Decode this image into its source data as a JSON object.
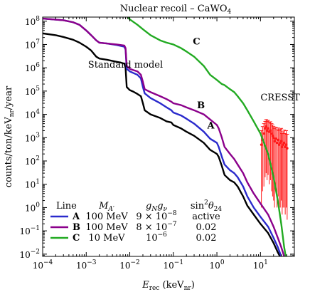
{
  "chart_data": {
    "type": "line",
    "title": "Nuclear recoil – CaWO",
    "title_sub": "4",
    "xlabel": {
      "main": "E",
      "sub": "rec",
      "rest": " (keV",
      "sub2": "nr",
      "close": ")"
    },
    "ylabel": {
      "main": "counts/ton/keV",
      "sub": "nr",
      "rest": "/year"
    },
    "x_scale": "log",
    "y_scale": "log",
    "xlim": [
      0.0001,
      60
    ],
    "ylim": [
      0.008,
      150000000
    ],
    "x_ticks": [
      {
        "v": 0.0001,
        "m": "10",
        "e": "−4"
      },
      {
        "v": 0.001,
        "m": "10",
        "e": "−3"
      },
      {
        "v": 0.01,
        "m": "10",
        "e": "−2"
      },
      {
        "v": 0.1,
        "m": "10",
        "e": "−1"
      },
      {
        "v": 1,
        "m": "10",
        "e": "0"
      },
      {
        "v": 10,
        "m": "10",
        "e": "1"
      }
    ],
    "y_ticks": [
      {
        "v": 0.01,
        "m": "10",
        "e": "−2"
      },
      {
        "v": 0.1,
        "m": "10",
        "e": "−1"
      },
      {
        "v": 1,
        "m": "10",
        "e": "0"
      },
      {
        "v": 10,
        "m": "10",
        "e": "1"
      },
      {
        "v": 100,
        "m": "10",
        "e": "2"
      },
      {
        "v": 1000,
        "m": "10",
        "e": "3"
      },
      {
        "v": 10000,
        "m": "10",
        "e": "4"
      },
      {
        "v": 100000,
        "m": "10",
        "e": "5"
      },
      {
        "v": 1000000,
        "m": "10",
        "e": "6"
      },
      {
        "v": 10000000,
        "m": "10",
        "e": "7"
      },
      {
        "v": 100000000,
        "m": "10",
        "e": "8"
      }
    ],
    "grid": false,
    "series": [
      {
        "name": "Standard model",
        "color": "#000000",
        "points": [
          [
            0.0001,
            30000000
          ],
          [
            0.0002,
            25000000
          ],
          [
            0.0003,
            21000000
          ],
          [
            0.0005,
            16000000
          ],
          [
            0.0007,
            12000000
          ],
          [
            0.001,
            8000000
          ],
          [
            0.0013,
            5500000
          ],
          [
            0.0017,
            3000000
          ],
          [
            0.002,
            2500000
          ],
          [
            0.003,
            2200000
          ],
          [
            0.005,
            1800000
          ],
          [
            0.006,
            1700000
          ],
          [
            0.0075,
            1500000
          ],
          [
            0.008,
            1000000
          ],
          [
            0.0085,
            150000
          ],
          [
            0.01,
            110000
          ],
          [
            0.012,
            95000
          ],
          [
            0.015,
            75000
          ],
          [
            0.018,
            60000
          ],
          [
            0.02,
            30000
          ],
          [
            0.022,
            15000
          ],
          [
            0.03,
            10000
          ],
          [
            0.05,
            7000
          ],
          [
            0.07,
            5000
          ],
          [
            0.09,
            4500
          ],
          [
            0.1,
            3500
          ],
          [
            0.15,
            2500
          ],
          [
            0.2,
            1800
          ],
          [
            0.3,
            1200
          ],
          [
            0.5,
            600
          ],
          [
            0.7,
            300
          ],
          [
            1,
            200
          ],
          [
            1.1,
            150
          ],
          [
            1.3,
            60
          ],
          [
            1.5,
            25
          ],
          [
            2,
            15
          ],
          [
            2.5,
            12
          ],
          [
            3,
            8
          ],
          [
            4,
            3
          ],
          [
            5,
            1.2
          ],
          [
            7,
            0.5
          ],
          [
            10,
            0.2
          ],
          [
            15,
            0.08
          ],
          [
            20,
            0.03
          ],
          [
            25,
            0.012
          ],
          [
            28,
            0.008
          ]
        ]
      },
      {
        "name": "A",
        "color": "#2a2acc",
        "points": [
          [
            0.0001,
            130000000
          ],
          [
            0.0003,
            110000000
          ],
          [
            0.0005,
            90000000
          ],
          [
            0.0007,
            70000000
          ],
          [
            0.001,
            40000000
          ],
          [
            0.0013,
            25000000
          ],
          [
            0.0017,
            15000000
          ],
          [
            0.002,
            12000000
          ],
          [
            0.003,
            11000000
          ],
          [
            0.005,
            9500000
          ],
          [
            0.0075,
            8000000
          ],
          [
            0.008,
            6000000
          ],
          [
            0.0085,
            900000
          ],
          [
            0.01,
            700000
          ],
          [
            0.012,
            600000
          ],
          [
            0.015,
            500000
          ],
          [
            0.018,
            350000
          ],
          [
            0.02,
            150000
          ],
          [
            0.022,
            80000
          ],
          [
            0.03,
            50000
          ],
          [
            0.05,
            30000
          ],
          [
            0.07,
            20000
          ],
          [
            0.09,
            15000
          ],
          [
            0.1,
            12000
          ],
          [
            0.15,
            9000
          ],
          [
            0.2,
            6500
          ],
          [
            0.3,
            4000
          ],
          [
            0.5,
            1800
          ],
          [
            0.7,
            900
          ],
          [
            1,
            600
          ],
          [
            1.1,
            400
          ],
          [
            1.3,
            150
          ],
          [
            1.5,
            70
          ],
          [
            2,
            40
          ],
          [
            2.5,
            30
          ],
          [
            3,
            20
          ],
          [
            4,
            8
          ],
          [
            5,
            3
          ],
          [
            7,
            1
          ],
          [
            10,
            0.4
          ],
          [
            15,
            0.15
          ],
          [
            20,
            0.05
          ],
          [
            25,
            0.02
          ],
          [
            30,
            0.008
          ]
        ]
      },
      {
        "name": "B",
        "color": "#8b008b",
        "points": [
          [
            0.0001,
            130000000
          ],
          [
            0.0003,
            110000000
          ],
          [
            0.0005,
            90000000
          ],
          [
            0.0007,
            70000000
          ],
          [
            0.001,
            40000000
          ],
          [
            0.0013,
            25000000
          ],
          [
            0.0017,
            15000000
          ],
          [
            0.002,
            12000000
          ],
          [
            0.003,
            11000000
          ],
          [
            0.005,
            10000000
          ],
          [
            0.0075,
            9000000
          ],
          [
            0.008,
            7000000
          ],
          [
            0.0085,
            1200000
          ],
          [
            0.01,
            900000
          ],
          [
            0.012,
            800000
          ],
          [
            0.015,
            700000
          ],
          [
            0.018,
            500000
          ],
          [
            0.02,
            250000
          ],
          [
            0.022,
            120000
          ],
          [
            0.03,
            90000
          ],
          [
            0.05,
            60000
          ],
          [
            0.07,
            45000
          ],
          [
            0.09,
            35000
          ],
          [
            0.1,
            30000
          ],
          [
            0.15,
            25000
          ],
          [
            0.2,
            20000
          ],
          [
            0.3,
            15000
          ],
          [
            0.5,
            10000
          ],
          [
            0.7,
            6000
          ],
          [
            1,
            3500
          ],
          [
            1.1,
            2500
          ],
          [
            1.3,
            1000
          ],
          [
            1.5,
            400
          ],
          [
            2,
            200
          ],
          [
            2.5,
            120
          ],
          [
            3,
            70
          ],
          [
            4,
            30
          ],
          [
            5,
            12
          ],
          [
            7,
            4
          ],
          [
            10,
            1.5
          ],
          [
            15,
            0.5
          ],
          [
            20,
            0.15
          ],
          [
            25,
            0.05
          ],
          [
            30,
            0.02
          ],
          [
            35,
            0.008
          ]
        ]
      },
      {
        "name": "C",
        "color": "#22aa22",
        "points": [
          [
            0.009,
            150000000
          ],
          [
            0.01,
            120000000
          ],
          [
            0.015,
            70000000
          ],
          [
            0.02,
            45000000
          ],
          [
            0.03,
            25000000
          ],
          [
            0.05,
            15000000
          ],
          [
            0.07,
            12000000
          ],
          [
            0.1,
            10000000
          ],
          [
            0.15,
            7000000
          ],
          [
            0.2,
            5000000
          ],
          [
            0.3,
            3000000
          ],
          [
            0.5,
            1200000
          ],
          [
            0.7,
            500000
          ],
          [
            1,
            300000
          ],
          [
            1.3,
            200000
          ],
          [
            1.5,
            180000
          ],
          [
            2,
            120000
          ],
          [
            2.5,
            90000
          ],
          [
            3,
            60000
          ],
          [
            4,
            30000
          ],
          [
            5,
            15000
          ],
          [
            7,
            5000
          ],
          [
            10,
            1500
          ],
          [
            15,
            200
          ],
          [
            20,
            20
          ],
          [
            25,
            2
          ],
          [
            30,
            0.2
          ],
          [
            35,
            0.02
          ],
          [
            38,
            0.008
          ]
        ]
      }
    ],
    "cresst": {
      "name": "CRESST",
      "color": "#ff1a1a",
      "points": [
        [
          10.5,
          500,
          1,
          2000
        ],
        [
          11.2,
          800,
          5,
          3000
        ],
        [
          12,
          1500,
          8,
          4000
        ],
        [
          12.8,
          2500,
          20,
          5000
        ],
        [
          13.5,
          3000,
          30,
          6000
        ],
        [
          14.2,
          2000,
          15,
          5000
        ],
        [
          15,
          2500,
          25,
          5500
        ],
        [
          16,
          1800,
          10,
          4500
        ],
        [
          17,
          2000,
          15,
          4800
        ],
        [
          18,
          1500,
          5,
          4000
        ],
        [
          19,
          1200,
          3,
          3500
        ],
        [
          20,
          1000,
          2,
          3000
        ],
        [
          21,
          700,
          1,
          2500
        ],
        [
          22.5,
          900,
          5,
          2800
        ],
        [
          24,
          600,
          1,
          2200
        ],
        [
          25.5,
          800,
          3,
          2600
        ],
        [
          27,
          500,
          1,
          2000
        ],
        [
          28.5,
          600,
          1,
          2300
        ],
        [
          30,
          700,
          2,
          2500
        ],
        [
          31.5,
          400,
          0.5,
          1500
        ],
        [
          33,
          500,
          1,
          1800
        ],
        [
          35,
          600,
          1,
          2100
        ],
        [
          37,
          400,
          0.5,
          1500
        ],
        [
          39,
          500,
          1,
          2000
        ],
        [
          41,
          350,
          0.3,
          1400
        ]
      ]
    },
    "annotations": [
      {
        "text": "Standard model",
        "x": 0.0011,
        "y": 1000000,
        "bold": false
      },
      {
        "text": "A",
        "x": 0.6,
        "y": 2500,
        "bold": true
      },
      {
        "text": "B",
        "x": 0.35,
        "y": 18000,
        "bold": true
      },
      {
        "text": "C",
        "x": 0.28,
        "y": 10000000,
        "bold": true
      },
      {
        "text": "CRESST",
        "x": 10,
        "y": 40000,
        "bold": false
      }
    ],
    "legend": {
      "placement": "bottom-left",
      "headers": {
        "line": "Line",
        "mass": "M",
        "mass_sub": "A′",
        "coupling": "g",
        "coupling_sub1": "N",
        "coupling_mid": "g",
        "coupling_sub2": "ν",
        "mixing": "sin",
        "mixing_sup": "2",
        "mixing_theta": "θ",
        "mixing_sub": "24"
      },
      "rows": [
        {
          "label": "A",
          "color": "#2a2acc",
          "mass": "100 MeV",
          "coupling_m": "9 × 10",
          "coupling_e": "−8",
          "mixing": "active"
        },
        {
          "label": "B",
          "color": "#8b008b",
          "mass": "100 MeV",
          "coupling_m": "8 × 10",
          "coupling_e": "−7",
          "mixing": "0.02"
        },
        {
          "label": "C",
          "color": "#22aa22",
          "mass": "10 MeV",
          "coupling_m": "10",
          "coupling_e": "−6",
          "mixing": "0.02"
        }
      ]
    }
  }
}
